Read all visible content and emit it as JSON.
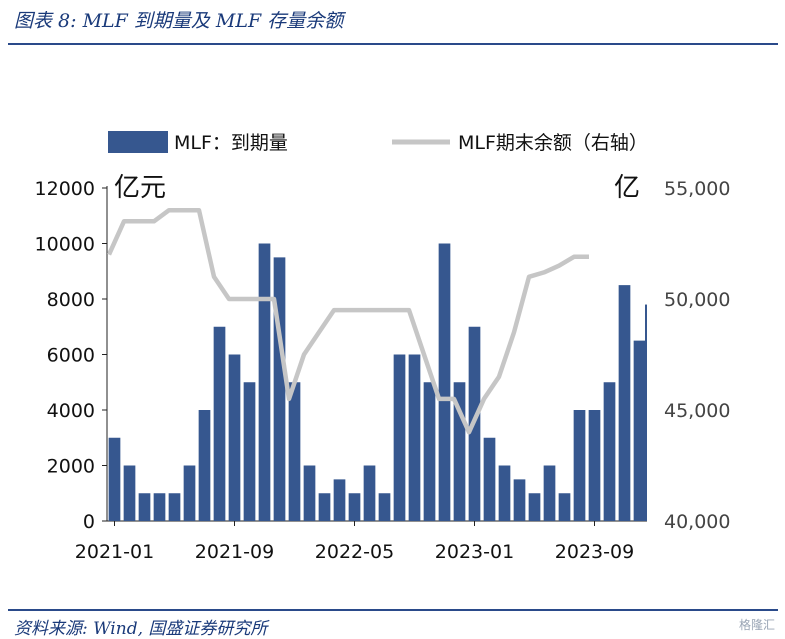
{
  "figure_title": "图表 8:  MLF 到期量及 MLF 存量余额",
  "source_note": "资料来源:  Wind,  国盛证券研究所",
  "watermark": "格隆汇",
  "colors": {
    "bar": "#36578f",
    "line": "#c6c6c6",
    "title": "#1a3a7a"
  },
  "chart_data": {
    "type": "bar",
    "title": "",
    "left_axis_unit": "亿元",
    "right_axis_unit": "亿",
    "ylim": [
      0,
      12000
    ],
    "y_ticks": [
      "0",
      "2000",
      "4000",
      "6000",
      "8000",
      "10000",
      "12000"
    ],
    "y2lim": [
      40000,
      55000
    ],
    "y2_ticks": [
      "40,000",
      "45,000",
      "50,000",
      "55,000"
    ],
    "x_tick_labels": [
      "2021-01",
      "2021-09",
      "2022-05",
      "2023-01",
      "2023-09"
    ],
    "x": [
      "2021-01",
      "2021-02",
      "2021-03",
      "2021-04",
      "2021-05",
      "2021-06",
      "2021-07",
      "2021-08",
      "2021-09",
      "2021-10",
      "2021-11",
      "2021-12",
      "2022-01",
      "2022-02",
      "2022-03",
      "2022-04",
      "2022-05",
      "2022-06",
      "2022-07",
      "2022-08",
      "2022-09",
      "2022-10",
      "2022-11",
      "2022-12",
      "2023-01",
      "2023-02",
      "2023-03",
      "2023-04",
      "2023-05",
      "2023-06",
      "2023-07",
      "2023-08",
      "2023-09",
      "2023-10",
      "2023-11",
      "2023-12"
    ],
    "legend": {
      "placement": "top"
    },
    "series": [
      {
        "name": "MLF：到期量",
        "kind": "bar",
        "axis": "left",
        "values": [
          3000,
          2000,
          1000,
          1000,
          1000,
          2000,
          4000,
          7000,
          6000,
          5000,
          10000,
          9500,
          5000,
          2000,
          1000,
          1500,
          1000,
          2000,
          1000,
          6000,
          6000,
          5000,
          10000,
          5000,
          7000,
          3000,
          2000,
          1500,
          1000,
          2000,
          1000,
          4000,
          4000,
          5000,
          8500,
          6500
        ]
      },
      {
        "name": "MLF期末余额（右轴）",
        "kind": "line",
        "axis": "right",
        "values": [
          52000,
          53500,
          53500,
          53500,
          54000,
          54000,
          54000,
          51000,
          50000,
          50000,
          50000,
          50000,
          45500,
          47500,
          48500,
          49500,
          49500,
          49500,
          49500,
          49500,
          49500,
          47500,
          45500,
          45500,
          44000,
          45500,
          46500,
          48500,
          51000,
          51200,
          51500,
          51900,
          51900,
          null,
          null,
          null
        ]
      }
    ],
    "partial_bar_note": "",
    "extra_bar_value": 7800
  }
}
